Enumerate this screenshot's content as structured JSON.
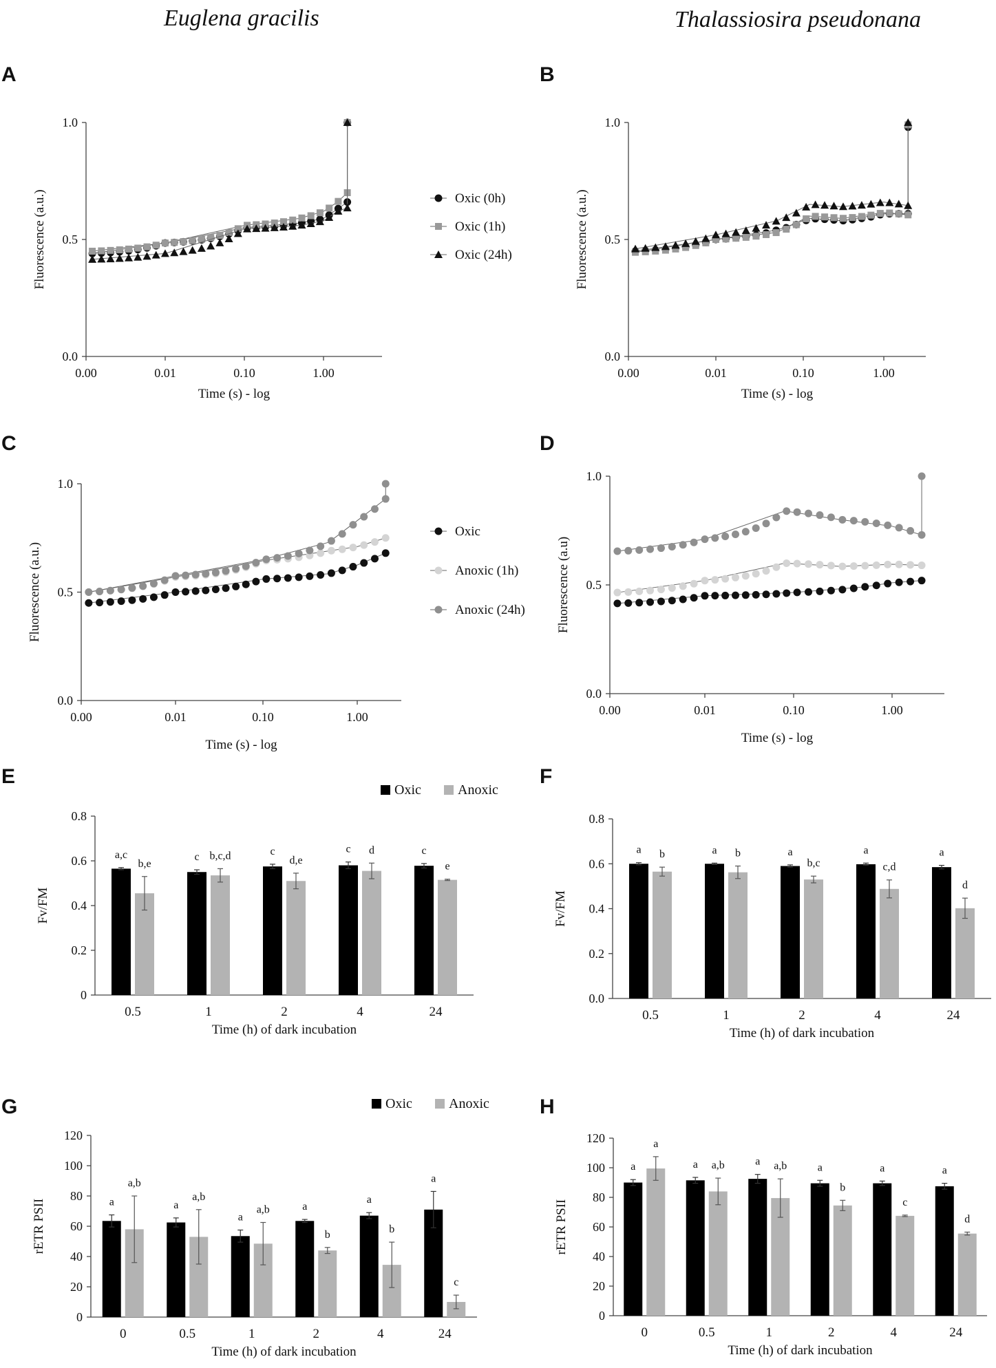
{
  "headers": {
    "left": "Euglena gracilis",
    "right": "Thalassiosira pseudonana"
  },
  "panel_labels": [
    "A",
    "B",
    "C",
    "D",
    "E",
    "F",
    "G",
    "H"
  ],
  "chart_data": [
    {
      "id": "A",
      "type": "line",
      "panel": "A",
      "xlabel": "Time (s) - log",
      "ylabel": "Fluorescence (a.u.)",
      "ylim": [
        0,
        1
      ],
      "yticks": [
        "0.0",
        "0.5",
        "1.0"
      ],
      "ytick_values": [
        0,
        0.5,
        1
      ],
      "xticks": [
        "0.00",
        "0.01",
        "0.10",
        "1.00"
      ],
      "xtick_values": [
        0.001,
        0.01,
        0.1,
        1
      ],
      "legend_position": "right",
      "series": [
        {
          "name": "Oxic (0h)",
          "color": "#111111",
          "marker": "circle",
          "x": [
            0.0012,
            0.01,
            0.1,
            0.5,
            1,
            1.5,
            2,
            2.001
          ],
          "y": [
            0.44,
            0.485,
            0.55,
            0.57,
            0.59,
            0.63,
            0.66,
            1.0
          ]
        },
        {
          "name": "Oxic (1h)",
          "color": "#999999",
          "marker": "square",
          "x": [
            0.0012,
            0.01,
            0.1,
            0.5,
            1,
            1.5,
            2,
            2.001
          ],
          "y": [
            0.45,
            0.485,
            0.56,
            0.59,
            0.62,
            0.66,
            0.7,
            1.0
          ]
        },
        {
          "name": "Oxic (24h)",
          "color": "#111111",
          "marker": "triangle",
          "x": [
            0.0012,
            0.01,
            0.1,
            0.5,
            1,
            1.5,
            2,
            2.001
          ],
          "y": [
            0.415,
            0.44,
            0.545,
            0.56,
            0.58,
            0.62,
            0.635,
            1.0
          ]
        }
      ]
    },
    {
      "id": "B",
      "type": "line",
      "panel": "B",
      "xlabel": "Time (s) - log",
      "ylabel": "Fluorescence (a.u.)",
      "ylim": [
        0,
        1
      ],
      "yticks": [
        "0.0",
        "0.5",
        "1.0"
      ],
      "ytick_values": [
        0,
        0.5,
        1
      ],
      "xticks": [
        "0.00",
        "0.01",
        "0.10",
        "1.00"
      ],
      "xtick_values": [
        0.001,
        0.01,
        0.1,
        1
      ],
      "series": [
        {
          "name": "Oxic (0h)",
          "color": "#111111",
          "marker": "circle",
          "x": [
            0.0012,
            0.01,
            0.05,
            0.12,
            0.3,
            1,
            2,
            2.001
          ],
          "y": [
            0.45,
            0.5,
            0.54,
            0.59,
            0.58,
            0.61,
            0.61,
            0.98
          ]
        },
        {
          "name": "Oxic (1h)",
          "color": "#999999",
          "marker": "square",
          "x": [
            0.0012,
            0.01,
            0.05,
            0.12,
            0.3,
            1,
            2,
            2.001
          ],
          "y": [
            0.445,
            0.5,
            0.53,
            0.6,
            0.59,
            0.615,
            0.605,
            0.99
          ]
        },
        {
          "name": "Oxic (24h)",
          "color": "#111111",
          "marker": "triangle",
          "x": [
            0.0012,
            0.01,
            0.05,
            0.12,
            0.3,
            1,
            2,
            2.001
          ],
          "y": [
            0.46,
            0.52,
            0.58,
            0.65,
            0.64,
            0.66,
            0.645,
            1.0
          ]
        }
      ]
    },
    {
      "id": "C",
      "type": "line",
      "panel": "C",
      "xlabel": "Time (s) - log",
      "ylabel": "Fluorescence (a.u.)",
      "ylim": [
        0,
        1
      ],
      "yticks": [
        "0.0",
        "0.5",
        "1.0"
      ],
      "ytick_values": [
        0,
        0.5,
        1
      ],
      "xticks": [
        "0.00",
        "0.01",
        "0.10",
        "1.00"
      ],
      "xtick_values": [
        0.001,
        0.01,
        0.1,
        1
      ],
      "legend_position": "right",
      "series": [
        {
          "name": "Oxic",
          "color": "#111111",
          "marker": "circle",
          "x": [
            0.0012,
            0.01,
            0.1,
            0.5,
            1,
            2
          ],
          "y": [
            0.45,
            0.5,
            0.56,
            0.585,
            0.625,
            0.68
          ]
        },
        {
          "name": "Anoxic (1h)",
          "color": "#d4d4d4",
          "marker": "circle",
          "x": [
            0.0012,
            0.01,
            0.1,
            0.5,
            1,
            2
          ],
          "y": [
            0.5,
            0.57,
            0.645,
            0.69,
            0.71,
            0.75
          ]
        },
        {
          "name": "Anoxic (24h)",
          "color": "#8f8f8f",
          "marker": "circle",
          "x": [
            0.0012,
            0.01,
            0.1,
            0.5,
            1,
            2,
            2.001
          ],
          "y": [
            0.5,
            0.575,
            0.65,
            0.73,
            0.83,
            0.93,
            1.0
          ]
        }
      ]
    },
    {
      "id": "D",
      "type": "line",
      "panel": "D",
      "xlabel": "Time (s) - log",
      "ylabel": "Fluorescence (a.u)",
      "ylim": [
        0,
        1
      ],
      "yticks": [
        "0.0",
        "0.5",
        "1.0"
      ],
      "ytick_values": [
        0,
        0.5,
        1
      ],
      "xticks": [
        "0.00",
        "0.01",
        "0.10",
        "1.00"
      ],
      "xtick_values": [
        0.001,
        0.01,
        0.1,
        1
      ],
      "series": [
        {
          "name": "Oxic",
          "color": "#111111",
          "marker": "circle",
          "x": [
            0.0012,
            0.01,
            0.1,
            0.5,
            1,
            2
          ],
          "y": [
            0.415,
            0.45,
            0.465,
            0.49,
            0.51,
            0.52
          ]
        },
        {
          "name": "Anoxic (1h)",
          "color": "#d4d4d4",
          "marker": "circle",
          "x": [
            0.0012,
            0.01,
            0.08,
            0.3,
            1,
            2
          ],
          "y": [
            0.465,
            0.52,
            0.6,
            0.585,
            0.595,
            0.59
          ]
        },
        {
          "name": "Anoxic (24h)",
          "color": "#8f8f8f",
          "marker": "circle",
          "x": [
            0.0012,
            0.01,
            0.08,
            0.3,
            1,
            2,
            2.001
          ],
          "y": [
            0.655,
            0.71,
            0.84,
            0.8,
            0.77,
            0.73,
            1.0
          ]
        }
      ]
    },
    {
      "id": "E",
      "type": "bar",
      "panel": "E",
      "xlabel": "Time (h) of dark incubation",
      "ylabel": "Fv/FM",
      "ylim": [
        0,
        0.8
      ],
      "yticks": [
        "0",
        "0.2",
        "0.4",
        "0.6",
        "0.8"
      ],
      "ytick_values": [
        0,
        0.2,
        0.4,
        0.6,
        0.8
      ],
      "categories": [
        "0.5",
        "1",
        "2",
        "4",
        "24"
      ],
      "legend_position": "top-right",
      "series": [
        {
          "name": "Oxic",
          "color": "#000000",
          "values": [
            0.565,
            0.55,
            0.575,
            0.58,
            0.578
          ],
          "errors": [
            0.005,
            0.01,
            0.01,
            0.015,
            0.01
          ],
          "letters": [
            "a,c",
            "c",
            "c",
            "c",
            "c"
          ]
        },
        {
          "name": "Anoxic",
          "color": "#b3b3b3",
          "values": [
            0.455,
            0.535,
            0.51,
            0.555,
            0.515
          ],
          "errors": [
            0.075,
            0.03,
            0.035,
            0.035,
            0.003
          ],
          "letters": [
            "b,e",
            "b,c,d",
            "d,e",
            "d",
            "e"
          ]
        }
      ]
    },
    {
      "id": "F",
      "type": "bar",
      "panel": "F",
      "xlabel": "Time (h) of dark incubation",
      "ylabel": "Fv/FM",
      "ylim": [
        0,
        0.8
      ],
      "yticks": [
        "0.0",
        "0.2",
        "0.4",
        "0.6",
        "0.8"
      ],
      "ytick_values": [
        0,
        0.2,
        0.4,
        0.6,
        0.8
      ],
      "categories": [
        "0.5",
        "1",
        "2",
        "4",
        "24"
      ],
      "series": [
        {
          "name": "Oxic",
          "color": "#000000",
          "values": [
            0.6,
            0.6,
            0.59,
            0.598,
            0.585
          ],
          "errors": [
            0.005,
            0.003,
            0.005,
            0.005,
            0.008
          ],
          "letters": [
            "a",
            "a",
            "a",
            "a",
            "a"
          ]
        },
        {
          "name": "Anoxic",
          "color": "#b3b3b3",
          "values": [
            0.565,
            0.562,
            0.53,
            0.488,
            0.402
          ],
          "errors": [
            0.02,
            0.028,
            0.015,
            0.04,
            0.045
          ],
          "letters": [
            "b",
            "b",
            "b,c",
            "c,d",
            "d"
          ]
        }
      ]
    },
    {
      "id": "G",
      "type": "bar",
      "panel": "G",
      "xlabel": "Time (h) of dark incubation",
      "ylabel": "rETR PSII",
      "ylim": [
        0,
        120
      ],
      "yticks": [
        "0",
        "20",
        "40",
        "60",
        "80",
        "100",
        "120"
      ],
      "ytick_values": [
        0,
        20,
        40,
        60,
        80,
        100,
        120
      ],
      "categories": [
        "0",
        "0.5",
        "1",
        "2",
        "4",
        "24"
      ],
      "legend_position": "top-right",
      "series": [
        {
          "name": "Oxic",
          "color": "#000000",
          "values": [
            63.5,
            62.5,
            53.5,
            63.5,
            67,
            71
          ],
          "errors": [
            4,
            3,
            4,
            1,
            2,
            12
          ],
          "letters": [
            "a",
            "a",
            "a",
            "a",
            "a",
            "a"
          ]
        },
        {
          "name": "Anoxic",
          "color": "#b3b3b3",
          "values": [
            58,
            53,
            48.5,
            44,
            34.5,
            10
          ],
          "errors": [
            22,
            18,
            14,
            2,
            15,
            4.5
          ],
          "letters": [
            "a,b",
            "a,b",
            "a,b",
            "b",
            "b",
            "c"
          ]
        }
      ]
    },
    {
      "id": "H",
      "type": "bar",
      "panel": "H",
      "xlabel": "Time (h) of dark incubation",
      "ylabel": "rETR PSII",
      "ylim": [
        0,
        120
      ],
      "yticks": [
        "0",
        "20",
        "40",
        "60",
        "80",
        "100",
        "120"
      ],
      "ytick_values": [
        0,
        20,
        40,
        60,
        80,
        100,
        120
      ],
      "categories": [
        "0",
        "0.5",
        "1",
        "2",
        "4",
        "24"
      ],
      "series": [
        {
          "name": "Oxic",
          "color": "#000000",
          "values": [
            90,
            91.5,
            92.5,
            89.5,
            89.5,
            87.5
          ],
          "errors": [
            2,
            2,
            3,
            2,
            1.5,
            2
          ],
          "letters": [
            "a",
            "a",
            "a",
            "a",
            "a",
            "a"
          ]
        },
        {
          "name": "Anoxic",
          "color": "#b3b3b3",
          "values": [
            99.5,
            84,
            79.5,
            74.5,
            67.5,
            55.5
          ],
          "errors": [
            8,
            9,
            13,
            3.5,
            0.5,
            1
          ],
          "letters": [
            "a",
            "a,b",
            "a,b",
            "b",
            "c",
            "d"
          ]
        }
      ]
    }
  ]
}
